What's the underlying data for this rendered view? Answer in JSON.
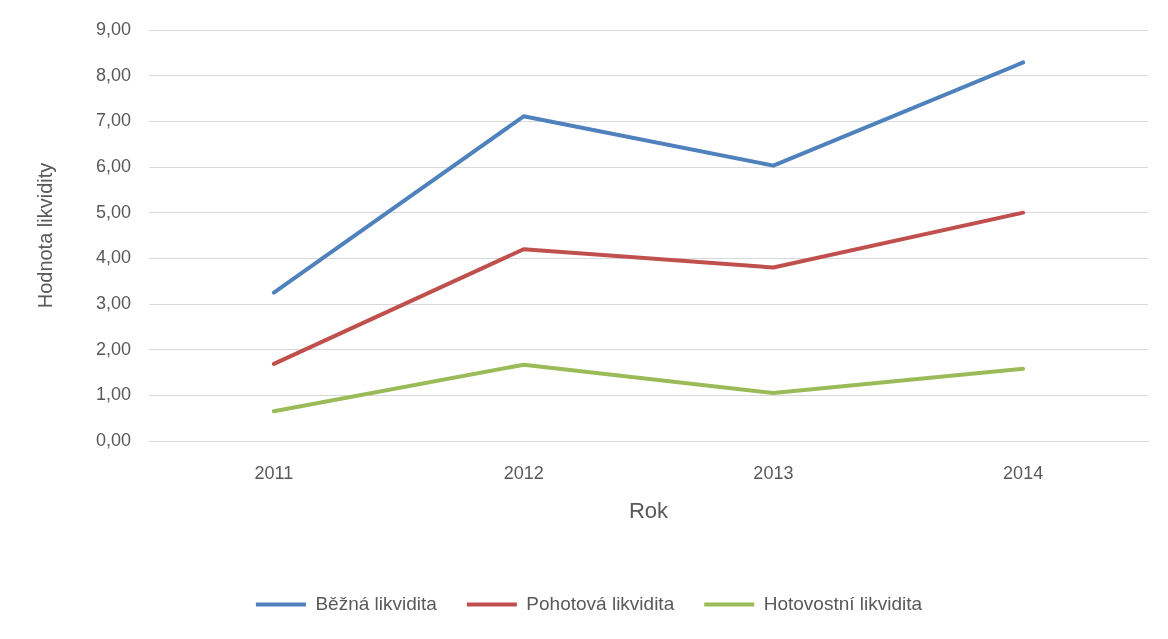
{
  "chart_data": {
    "type": "line",
    "xlabel": "Rok",
    "ylabel": "Hodnota likvidity",
    "categories": [
      "2011",
      "2012",
      "2013",
      "2014"
    ],
    "series": [
      {
        "name": "Běžná likvidita",
        "color": "#4f81bd",
        "values": [
          3.25,
          7.11,
          6.03,
          8.29
        ]
      },
      {
        "name": "Pohotová likvidita",
        "color": "#c0504d",
        "values": [
          1.69,
          4.2,
          3.8,
          5.0
        ]
      },
      {
        "name": "Hotovostní likvidita",
        "color": "#9bbb59",
        "values": [
          0.65,
          1.67,
          1.05,
          1.58
        ]
      }
    ],
    "ylim": [
      0,
      9
    ],
    "yticks": [
      {
        "value": 0,
        "label": "0,00"
      },
      {
        "value": 1,
        "label": "1,00"
      },
      {
        "value": 2,
        "label": "2,00"
      },
      {
        "value": 3,
        "label": "3,00"
      },
      {
        "value": 4,
        "label": "4,00"
      },
      {
        "value": 5,
        "label": "5,00"
      },
      {
        "value": 6,
        "label": "6,00"
      },
      {
        "value": 7,
        "label": "7,00"
      },
      {
        "value": 8,
        "label": "8,00"
      },
      {
        "value": 9,
        "label": "9,00"
      }
    ],
    "grid": "y",
    "legend": "bottom",
    "marker": "none",
    "line_style": "solid"
  }
}
